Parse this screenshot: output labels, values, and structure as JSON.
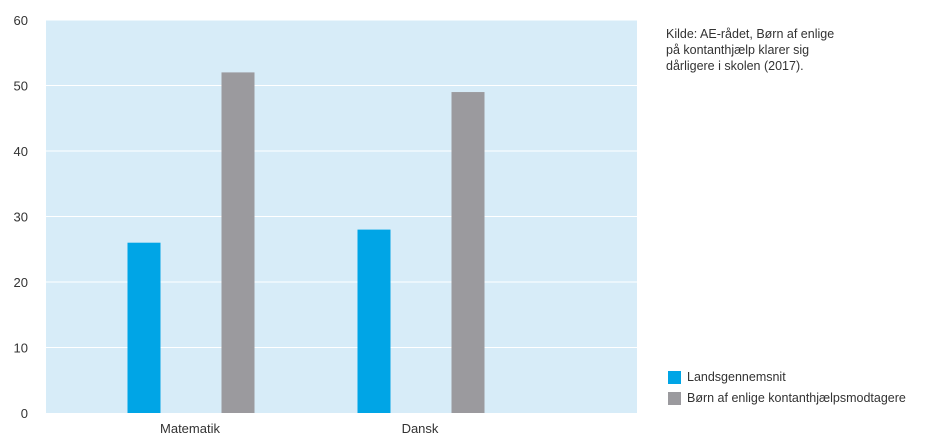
{
  "colors": {
    "plot_background": "#d7ecf8",
    "grid": "#ffffff",
    "series_1": "#00a5e6",
    "series_2": "#9b9a9e"
  },
  "source_note": {
    "lines": [
      "Kilde: AE-rådet, Børn af enlige",
      "på kontanthjælp klarer sig",
      "dårligere i skolen (2017)."
    ]
  },
  "chart_data": {
    "type": "bar",
    "title": "",
    "xlabel": "",
    "ylabel": "",
    "categories": [
      "Matematik",
      "Dansk"
    ],
    "series": [
      {
        "name": "Landsgennemsnit",
        "values": [
          26,
          28
        ]
      },
      {
        "name": "Børn af enlige kontanthjælpsmodtagere",
        "values": [
          52,
          49
        ]
      }
    ],
    "ylim": [
      0,
      60
    ],
    "yticks": [
      "0",
      "10",
      "20",
      "30",
      "40",
      "50",
      "60"
    ],
    "grid": true,
    "legend": "bottom-right"
  }
}
